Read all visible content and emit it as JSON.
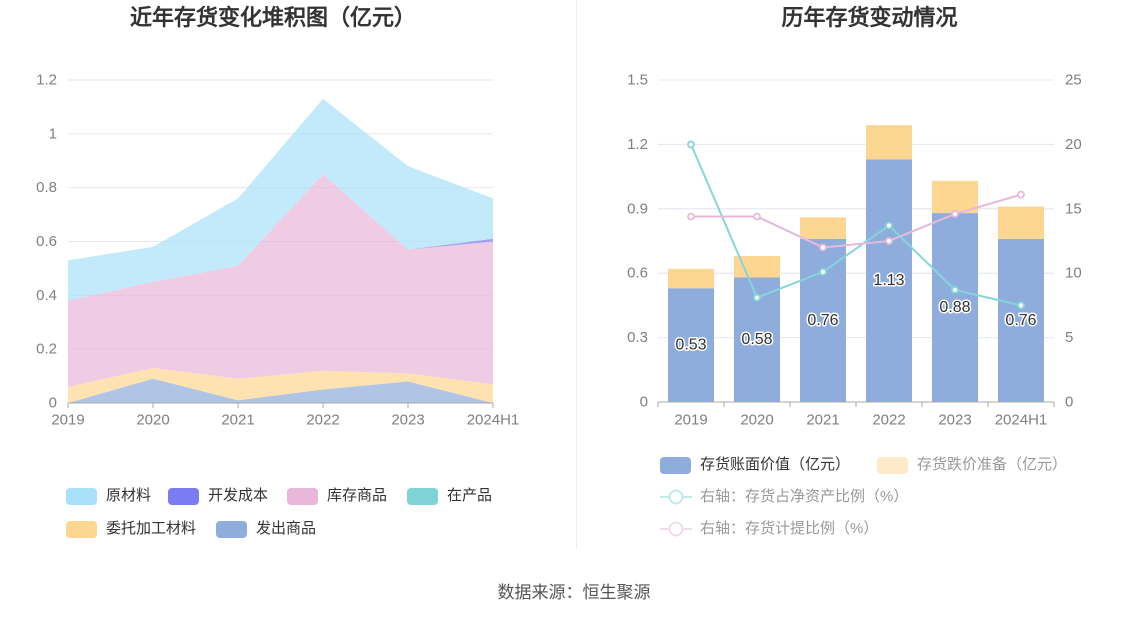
{
  "chart_data": [
    {
      "type": "area",
      "stacked": true,
      "title": "近年存货变化堆积图（亿元）",
      "categories": [
        "2019",
        "2020",
        "2021",
        "2022",
        "2023",
        "2024H1"
      ],
      "ylim": [
        0,
        1.2
      ],
      "yticks": [
        0,
        0.2,
        0.4,
        0.6,
        0.8,
        1,
        1.2
      ],
      "grid": true,
      "legend_position": "bottom",
      "series": [
        {
          "name": "原材料",
          "color": "#a9e1fa",
          "values": [
            0.15,
            0.13,
            0.25,
            0.28,
            0.31,
            0.15
          ]
        },
        {
          "name": "开发成本",
          "color": "#7c7cf2",
          "values": [
            0,
            0,
            0,
            0,
            0,
            0.01
          ]
        },
        {
          "name": "库存商品",
          "color": "#e8b7d9",
          "values": [
            0.32,
            0.32,
            0.42,
            0.73,
            0.46,
            0.53
          ]
        },
        {
          "name": "在产品",
          "color": "#7fd3d7",
          "values": [
            0,
            0,
            0,
            0,
            0,
            0
          ]
        },
        {
          "name": "委托加工材料",
          "color": "#fdd691",
          "values": [
            0.06,
            0.04,
            0.08,
            0.07,
            0.03,
            0.07
          ]
        },
        {
          "name": "发出商品",
          "color": "#8eaddc",
          "values": [
            0,
            0.09,
            0.01,
            0.05,
            0.08,
            0
          ]
        }
      ]
    },
    {
      "type": "bar",
      "title": "历年存货变动情况",
      "categories": [
        "2019",
        "2020",
        "2021",
        "2022",
        "2023",
        "2024H1"
      ],
      "ylim": [
        0,
        1.5
      ],
      "yticks": [
        0,
        0.3,
        0.6,
        0.9,
        1.2,
        1.5
      ],
      "y2lim": [
        0,
        25
      ],
      "y2ticks": [
        0,
        5,
        10,
        15,
        20,
        25
      ],
      "grid": true,
      "legend_position": "bottom",
      "series": [
        {
          "name": "存货账面价值（亿元）",
          "type": "bar",
          "stacked": true,
          "right_axis": false,
          "show_labels": true,
          "color": "#8eaddc",
          "values": [
            0.53,
            0.58,
            0.76,
            1.13,
            0.88,
            0.76
          ]
        },
        {
          "name": "存货跌价准备（亿元）",
          "type": "bar",
          "stacked": true,
          "right_axis": false,
          "show_labels": false,
          "color": "#fdd691",
          "values": [
            0.09,
            0.1,
            0.1,
            0.16,
            0.15,
            0.15
          ]
        },
        {
          "name": "右轴：存货占净资产比例（%）",
          "type": "line",
          "right_axis": true,
          "color": "#84d6da",
          "values": [
            20.0,
            8.1,
            10.1,
            13.7,
            8.7,
            7.5
          ]
        },
        {
          "name": "右轴：存货计提比例（%）",
          "type": "line",
          "right_axis": true,
          "color": "#e6b9dc",
          "values": [
            14.4,
            14.4,
            12.0,
            12.5,
            14.6,
            16.1
          ]
        }
      ]
    }
  ],
  "source": "数据来源：恒生聚源"
}
